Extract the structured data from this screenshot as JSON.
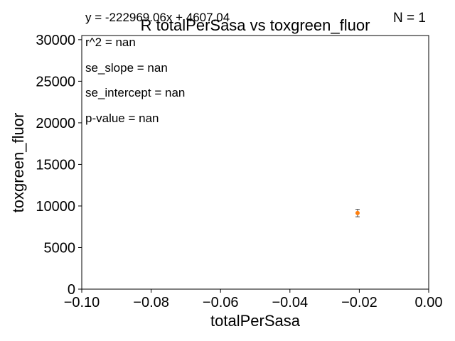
{
  "chart_data": {
    "type": "scatter",
    "title": "R totalPerSasa vs toxgreen_fluor",
    "xlabel": "totalPerSasa",
    "ylabel": "toxgreen_fluor",
    "xlim": [
      -0.1,
      0.0
    ],
    "ylim": [
      0,
      30500
    ],
    "x_ticks": [
      -0.1,
      -0.08,
      -0.06,
      -0.04,
      -0.02,
      0.0
    ],
    "x_tick_labels": [
      "−0.10",
      "−0.08",
      "−0.06",
      "−0.04",
      "−0.02",
      "0.00"
    ],
    "y_ticks": [
      0,
      5000,
      10000,
      15000,
      20000,
      25000,
      30000
    ],
    "y_tick_labels": [
      "0",
      "5000",
      "10000",
      "15000",
      "20000",
      "25000",
      "30000"
    ],
    "grid": false,
    "point_color": "#ff7f0e",
    "errorbar_color": "#444444",
    "points": [
      {
        "x": -0.0205,
        "y": 9150,
        "yerr": 450
      }
    ],
    "annotations": {
      "equation": "y = -222969.06x + 4607.04",
      "n_label": "N = 1",
      "r2": "r^2 = nan",
      "se_slope": "se_slope = nan",
      "se_intercept": "se_intercept = nan",
      "p_value": "p-value = nan"
    }
  }
}
